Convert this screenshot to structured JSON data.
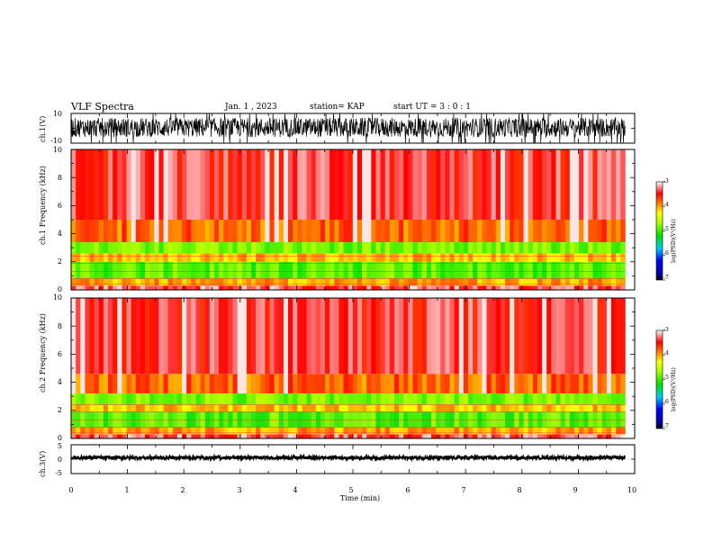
{
  "header": {
    "title": "VLF Spectra",
    "date": "Jan. 1 , 2023",
    "station": "station= KAP",
    "start": "start UT = 3 : 0 : 1"
  },
  "chart_data": {
    "type": "heatmap",
    "title": "VLF Spectra",
    "x": {
      "label": "Time (min)",
      "range": [
        0,
        10
      ],
      "ticks": [
        "0",
        "1",
        "2",
        "3",
        "4",
        "5",
        "6",
        "7",
        "8",
        "9",
        "10"
      ],
      "data_end": 9.83
    },
    "panels": [
      {
        "kind": "waveform",
        "ylabel": "ch.1(V)",
        "ylim": [
          -10,
          10
        ],
        "ticks": [
          "10",
          "-10"
        ],
        "mean": 0.5,
        "typical_range": [
          -6,
          7
        ]
      },
      {
        "kind": "spectrogram",
        "ylabel": "ch.1 Frequency (kHz)",
        "ylim": [
          0,
          10
        ],
        "ticks": [
          "10",
          "8",
          "6",
          "4",
          "2",
          "0"
        ],
        "colorbar": {
          "label": "log(PSD)(V²/Hz)",
          "range": [
            -7,
            -3
          ],
          "ticks": [
            "-3",
            "-4",
            "-5",
            "-6",
            "-7"
          ]
        },
        "bands_kHz": [
          {
            "from": 0.0,
            "to": 0.3,
            "log_psd": -3.3
          },
          {
            "from": 0.3,
            "to": 0.8,
            "log_psd": -4.0
          },
          {
            "from": 0.8,
            "to": 2.0,
            "log_psd": -4.9
          },
          {
            "from": 2.0,
            "to": 2.6,
            "log_psd": -4.1
          },
          {
            "from": 2.6,
            "to": 3.4,
            "log_psd": -4.8
          },
          {
            "from": 3.4,
            "to": 5.0,
            "log_psd": -3.8
          },
          {
            "from": 5.0,
            "to": 10.0,
            "log_psd": -3.4
          }
        ]
      },
      {
        "kind": "spectrogram",
        "ylabel": "ch.2 Frequency (kHz)",
        "ylim": [
          0,
          10
        ],
        "ticks": [
          "10",
          "8",
          "6",
          "4",
          "2",
          "0"
        ],
        "colorbar": {
          "label": "log(PSD)(V²/Hz)",
          "range": [
            -7,
            -3
          ],
          "ticks": [
            "-3",
            "-4",
            "-5",
            "-6",
            "-7"
          ]
        },
        "bands_kHz": [
          {
            "from": 0.0,
            "to": 0.3,
            "log_psd": -3.3
          },
          {
            "from": 0.3,
            "to": 0.8,
            "log_psd": -4.0
          },
          {
            "from": 0.8,
            "to": 1.9,
            "log_psd": -4.9
          },
          {
            "from": 1.9,
            "to": 2.4,
            "log_psd": -4.1
          },
          {
            "from": 2.4,
            "to": 3.2,
            "log_psd": -4.8
          },
          {
            "from": 3.2,
            "to": 4.6,
            "log_psd": -3.8
          },
          {
            "from": 4.6,
            "to": 10.0,
            "log_psd": -3.4
          }
        ]
      },
      {
        "kind": "waveform",
        "ylabel": "ch.3(V)",
        "ylim": [
          -5,
          5
        ],
        "ticks": [
          "5",
          "0",
          "-5"
        ],
        "mean": 0.5,
        "typical_range": [
          0,
          1
        ]
      }
    ]
  }
}
